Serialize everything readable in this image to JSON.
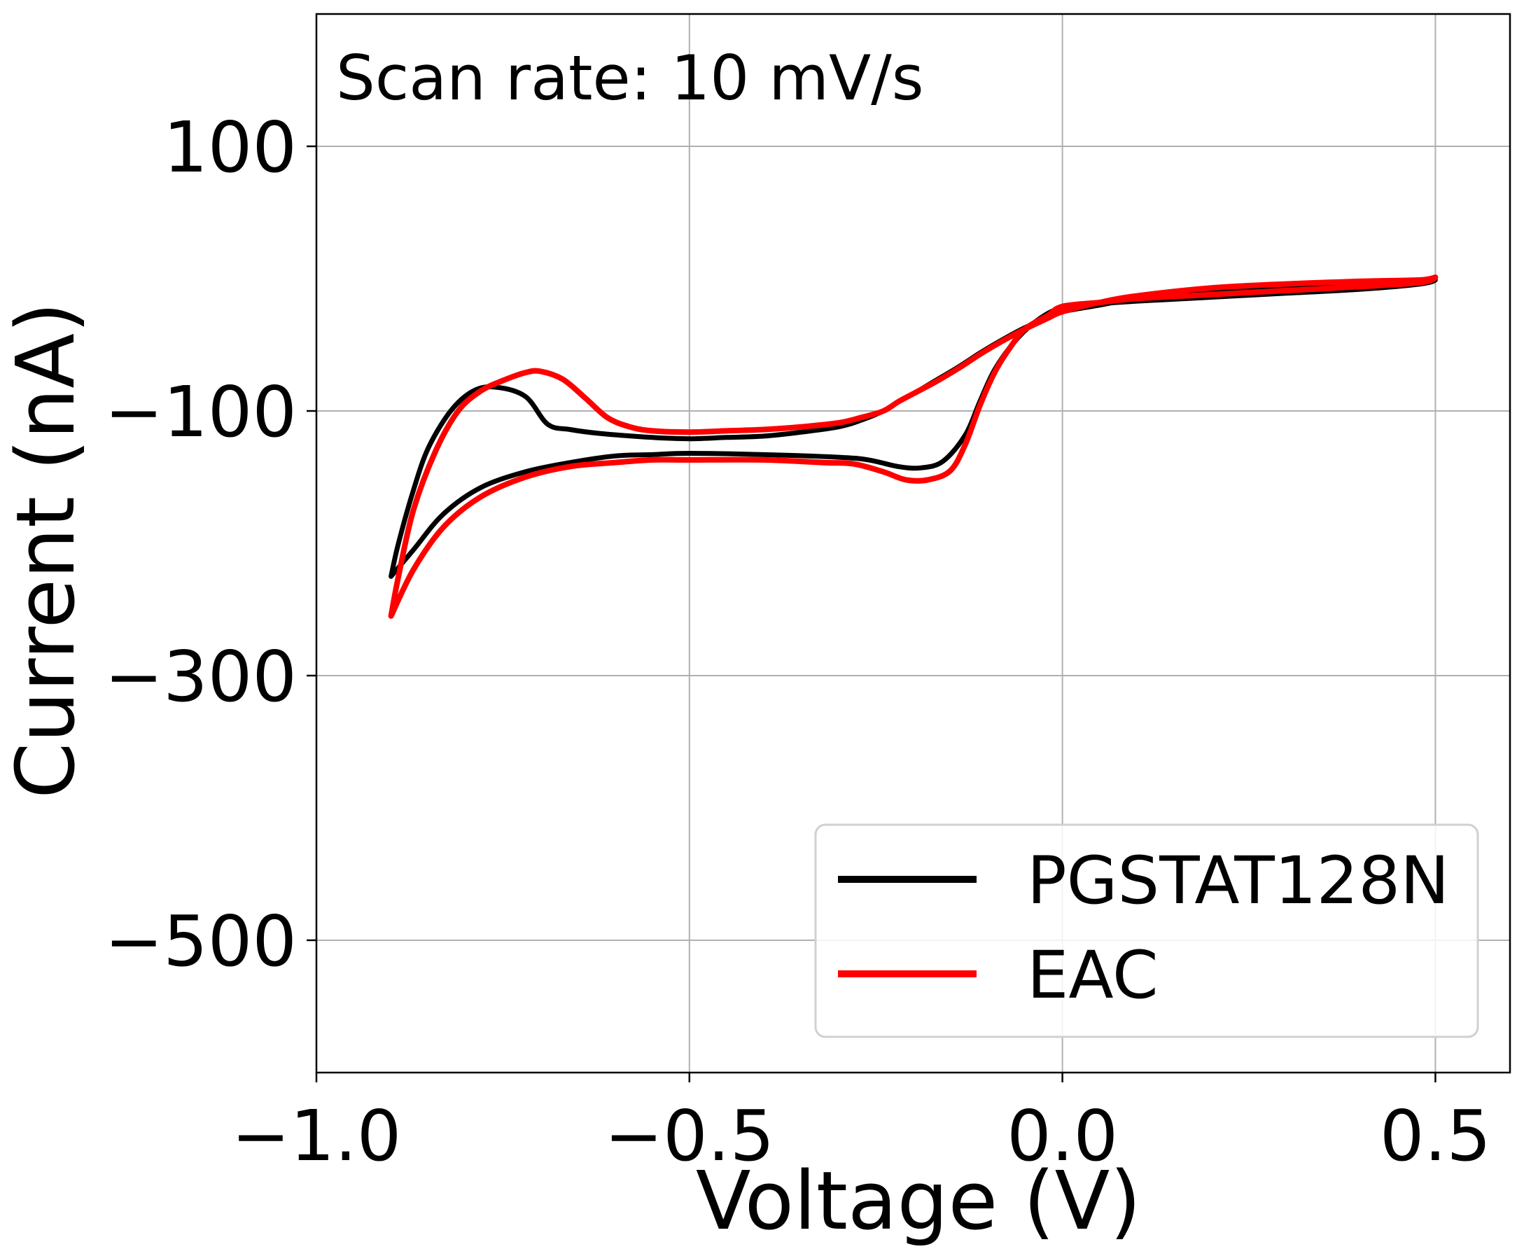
{
  "chart_data": {
    "type": "line",
    "title": "",
    "xlabel": "Voltage (V)",
    "ylabel": "Current (nA)",
    "xlim": [
      -1.0,
      0.6
    ],
    "ylim": [
      -600,
      200
    ],
    "x_ticks": [
      -1.0,
      -0.5,
      0.0,
      0.5
    ],
    "x_tick_labels": [
      "−1.0",
      "−0.5",
      "0.0",
      "0.5"
    ],
    "y_ticks": [
      100,
      -100,
      -300,
      -500
    ],
    "y_tick_labels": [
      "100",
      "−100",
      "−300",
      "−500"
    ],
    "grid": true,
    "legend_placement": "bottom-right",
    "annotation": "Scan rate: 10 mV/s",
    "series": [
      {
        "name": "PGSTAT128N",
        "color": "#000000",
        "style": "solid",
        "x": [
          -0.9,
          -0.89,
          -0.87,
          -0.85,
          -0.82,
          -0.79,
          -0.76,
          -0.72,
          -0.69,
          -0.66,
          -0.62,
          -0.55,
          -0.5,
          -0.45,
          -0.4,
          -0.35,
          -0.3,
          -0.27,
          -0.24,
          -0.22,
          -0.2,
          -0.17,
          -0.14,
          -0.11,
          -0.08,
          -0.05,
          -0.02,
          0.0,
          0.05,
          0.1,
          0.2,
          0.3,
          0.4,
          0.48,
          0.5,
          0.48,
          0.4,
          0.3,
          0.2,
          0.1,
          0.05,
          0.0,
          -0.03,
          -0.06,
          -0.09,
          -0.11,
          -0.13,
          -0.16,
          -0.19,
          -0.22,
          -0.26,
          -0.3,
          -0.4,
          -0.5,
          -0.55,
          -0.6,
          -0.66,
          -0.72,
          -0.78,
          -0.83,
          -0.87,
          -0.9
        ],
        "y": [
          -225,
          -200,
          -160,
          -128,
          -100,
          -85,
          -82,
          -89,
          -110,
          -114,
          -117,
          -120,
          -121,
          -120,
          -119,
          -116,
          -112,
          -107,
          -100,
          -93,
          -87,
          -77,
          -67,
          -56,
          -46,
          -37,
          -30,
          -25,
          -20,
          -15,
          -9,
          -6,
          -3,
          -2,
          -1,
          -4,
          -8,
          -11,
          -14,
          -17,
          -19,
          -22,
          -30,
          -45,
          -68,
          -92,
          -118,
          -138,
          -143,
          -142,
          -137,
          -135,
          -133,
          -132,
          -133,
          -134,
          -139,
          -146,
          -158,
          -178,
          -205,
          -225
        ]
      },
      {
        "name": "EAC",
        "color": "#ff0000",
        "style": "solid",
        "x": [
          -0.9,
          -0.89,
          -0.87,
          -0.84,
          -0.81,
          -0.78,
          -0.75,
          -0.72,
          -0.7,
          -0.67,
          -0.64,
          -0.61,
          -0.58,
          -0.55,
          -0.5,
          -0.45,
          -0.4,
          -0.35,
          -0.3,
          -0.27,
          -0.24,
          -0.22,
          -0.2,
          -0.17,
          -0.14,
          -0.11,
          -0.08,
          -0.05,
          -0.02,
          0.0,
          0.05,
          0.1,
          0.2,
          0.3,
          0.4,
          0.48,
          0.5,
          0.48,
          0.4,
          0.3,
          0.2,
          0.1,
          0.05,
          0.0,
          -0.02,
          -0.05,
          -0.07,
          -0.09,
          -0.11,
          -0.13,
          -0.15,
          -0.18,
          -0.21,
          -0.24,
          -0.28,
          -0.32,
          -0.4,
          -0.5,
          -0.55,
          -0.6,
          -0.66,
          -0.72,
          -0.78,
          -0.83,
          -0.87,
          -0.9
        ],
        "y": [
          -255,
          -225,
          -175,
          -130,
          -100,
          -85,
          -77,
          -71,
          -70,
          -76,
          -90,
          -105,
          -112,
          -115,
          -116,
          -115,
          -114,
          -112,
          -109,
          -105,
          -100,
          -93,
          -87,
          -78,
          -68,
          -57,
          -47,
          -38,
          -30,
          -25,
          -18,
          -13,
          -7,
          -4,
          -2,
          -1,
          1,
          -3,
          -6,
          -9,
          -12,
          -15,
          -18,
          -21,
          -28,
          -38,
          -52,
          -70,
          -95,
          -125,
          -145,
          -152,
          -152,
          -146,
          -140,
          -139,
          -137,
          -137,
          -137,
          -139,
          -142,
          -150,
          -165,
          -188,
          -220,
          -255
        ]
      }
    ]
  }
}
